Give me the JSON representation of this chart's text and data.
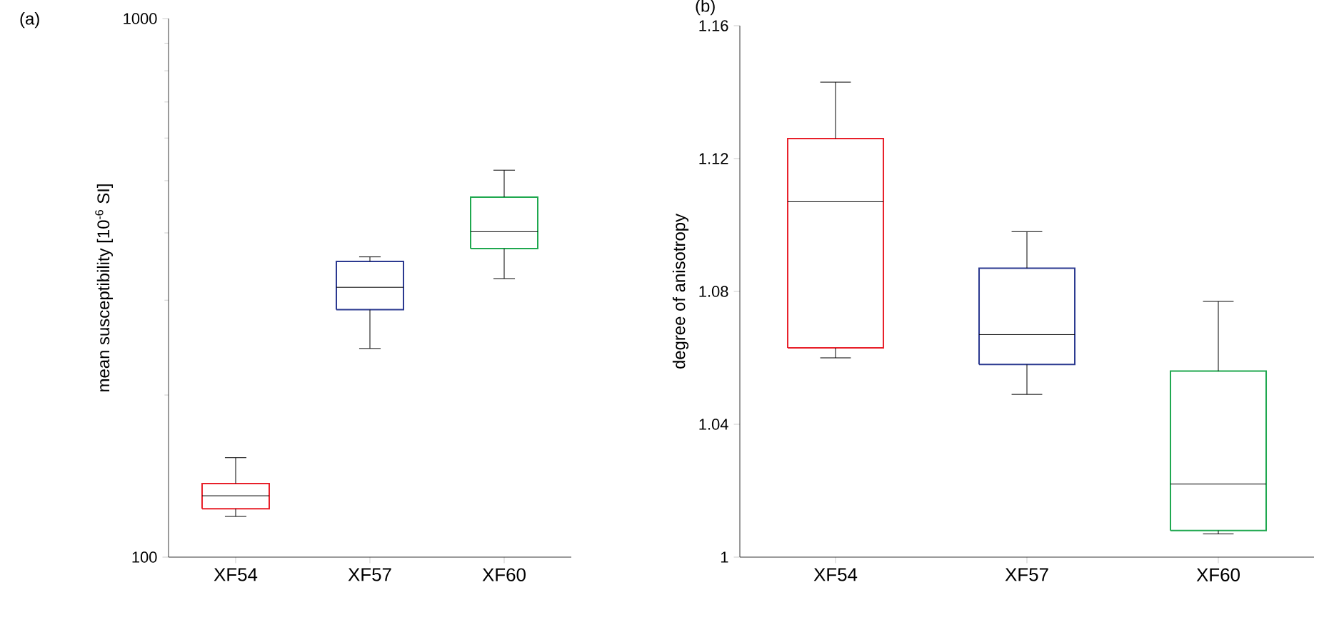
{
  "chart_data": [
    {
      "type": "box",
      "title": "(a)",
      "ylabel": "mean susceptibility [10$^{-6}$ SI]",
      "categories": [
        "XF54",
        "XF57",
        "XF60"
      ],
      "colors": [
        "#e8202a",
        "#2b3990",
        "#1fa84f"
      ],
      "log": "y",
      "ylim": [
        100,
        1000
      ],
      "yticks": [
        100,
        {
          "value": 200,
          "label": null
        },
        {
          "value": 300,
          "label": null
        },
        {
          "value": 400,
          "label": null
        },
        {
          "value": 500,
          "label": null
        },
        {
          "value": 600,
          "label": null
        },
        {
          "value": 700,
          "label": null
        },
        {
          "value": 800,
          "label": null
        },
        {
          "value": 900,
          "label": null
        },
        1000
      ],
      "grid": false,
      "boxes": [
        {
          "low": 119,
          "q1": 123,
          "median": 130,
          "q3": 137,
          "high": 153
        },
        {
          "low": 244,
          "q1": 288,
          "median": 317,
          "q3": 354,
          "high": 361
        },
        {
          "low": 329,
          "q1": 374,
          "median": 402,
          "q3": 466,
          "high": 523
        }
      ]
    },
    {
      "type": "box",
      "title": "(b)",
      "ylabel": "degree of anisotropy",
      "categories": [
        "XF54",
        "XF57",
        "XF60"
      ],
      "colors": [
        "#e8202a",
        "#2b3990",
        "#1fa84f"
      ],
      "ylim": [
        1,
        1.16
      ],
      "yticks": [
        1,
        1.04,
        1.08,
        1.12,
        1.16
      ],
      "grid": false,
      "boxes": [
        {
          "low": 1.06,
          "q1": 1.063,
          "median": 1.107,
          "q3": 1.126,
          "high": 1.143
        },
        {
          "low": 1.049,
          "q1": 1.058,
          "median": 1.067,
          "q3": 1.087,
          "high": 1.098
        },
        {
          "low": 1.007,
          "q1": 1.008,
          "median": 1.022,
          "q3": 1.056,
          "high": 1.077
        }
      ]
    }
  ]
}
